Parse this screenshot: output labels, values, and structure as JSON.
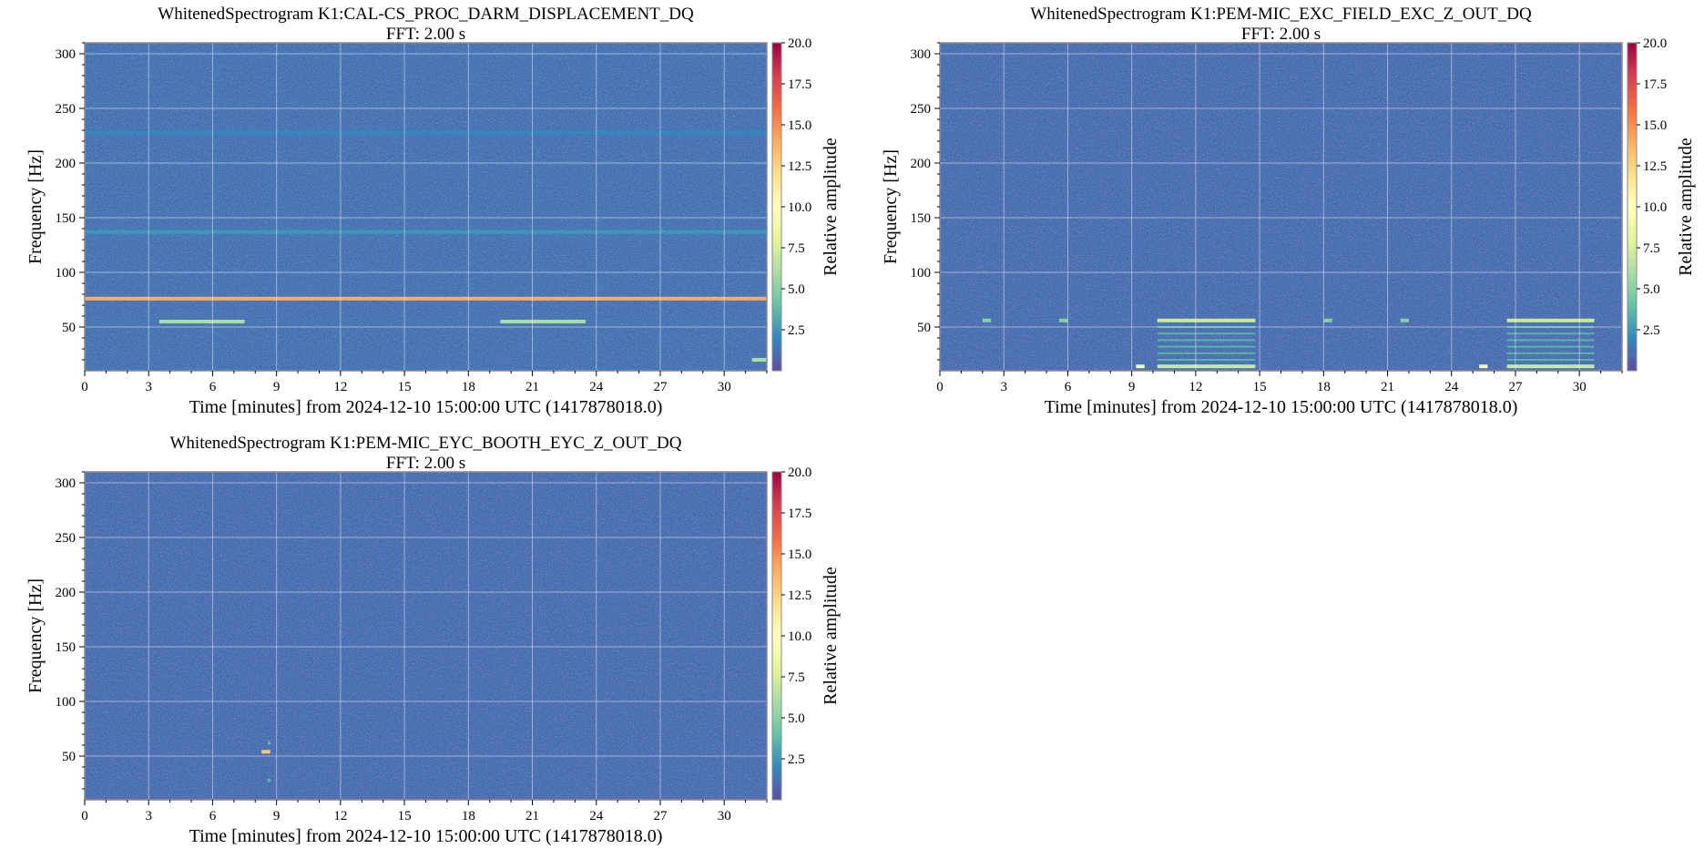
{
  "figure": {
    "time_axis_label": "Time [minutes] from 2024-12-10 15:00:00 UTC (1417878018.0)",
    "freq_axis_label": "Frequency [Hz]",
    "colorbar_label": "Relative amplitude"
  },
  "chart_data": [
    {
      "type": "heatmap",
      "title": "WhitenedSpectrogram K1:CAL-CS_PROC_DARM_DISPLACEMENT_DQ",
      "subtitle": "FFT: 2.00 s",
      "xlabel": "Time [minutes] from 2024-12-10 15:00:00 UTC (1417878018.0)",
      "ylabel": "Frequency [Hz]",
      "xlim": [
        0,
        32
      ],
      "ylim": [
        10,
        310
      ],
      "xticks": [
        0,
        3,
        6,
        9,
        12,
        15,
        18,
        21,
        24,
        27,
        30
      ],
      "yticks": [
        50,
        100,
        150,
        200,
        250,
        300
      ],
      "grid": true,
      "colorbar": {
        "label": "Relative amplitude",
        "range": [
          0,
          20
        ],
        "ticks": [
          "2.5",
          "5.0",
          "7.5",
          "10.0",
          "12.5",
          "15.0",
          "17.5",
          "20.0"
        ]
      },
      "background_level": 1.2,
      "features": [
        {
          "kind": "line",
          "t0": 0,
          "t1": 32,
          "f": 76,
          "level": 14
        },
        {
          "kind": "line",
          "t0": 3.5,
          "t1": 7.5,
          "f": 55,
          "level": 6
        },
        {
          "kind": "line",
          "t0": 19.5,
          "t1": 23.5,
          "f": 55,
          "level": 6
        },
        {
          "kind": "line",
          "t0": 0,
          "t1": 32,
          "f": 137,
          "level": 2.5
        },
        {
          "kind": "line",
          "t0": 0,
          "t1": 32,
          "f": 228,
          "level": 2
        },
        {
          "kind": "line",
          "t0": 31.3,
          "t1": 32,
          "f": 20,
          "level": 6
        }
      ]
    },
    {
      "type": "heatmap",
      "title": "WhitenedSpectrogram K1:PEM-MIC_EXC_FIELD_EXC_Z_OUT_DQ",
      "subtitle": "FFT: 2.00 s",
      "xlabel": "Time [minutes] from 2024-12-10 15:00:00 UTC (1417878018.0)",
      "ylabel": "Frequency [Hz]",
      "xlim": [
        0,
        32
      ],
      "ylim": [
        10,
        310
      ],
      "xticks": [
        0,
        3,
        6,
        9,
        12,
        15,
        18,
        21,
        24,
        27,
        30
      ],
      "yticks": [
        50,
        100,
        150,
        200,
        250,
        300
      ],
      "grid": true,
      "colorbar": {
        "label": "Relative amplitude",
        "range": [
          0,
          20
        ],
        "ticks": [
          "2.5",
          "5.0",
          "7.5",
          "10.0",
          "12.5",
          "15.0",
          "17.5",
          "20.0"
        ]
      },
      "background_level": 1,
      "features": [
        {
          "kind": "line",
          "t0": 10.2,
          "t1": 14.8,
          "f": 56,
          "level": 7
        },
        {
          "kind": "line",
          "t0": 10.2,
          "t1": 14.8,
          "f": 14,
          "level": 7
        },
        {
          "kind": "line",
          "t0": 26.6,
          "t1": 30.7,
          "f": 56,
          "level": 7
        },
        {
          "kind": "line",
          "t0": 26.6,
          "t1": 30.7,
          "f": 14,
          "level": 7
        },
        {
          "kind": "line",
          "t0": 2.0,
          "t1": 2.4,
          "f": 56,
          "level": 5
        },
        {
          "kind": "line",
          "t0": 5.6,
          "t1": 6.0,
          "f": 56,
          "level": 5
        },
        {
          "kind": "line",
          "t0": 9.2,
          "t1": 9.6,
          "f": 14,
          "level": 9
        },
        {
          "kind": "line",
          "t0": 18.0,
          "t1": 18.4,
          "f": 56,
          "level": 5
        },
        {
          "kind": "line",
          "t0": 21.6,
          "t1": 22.0,
          "f": 56,
          "level": 5
        },
        {
          "kind": "line",
          "t0": 25.3,
          "t1": 25.7,
          "f": 14,
          "level": 9
        },
        {
          "kind": "comb",
          "t0": 10.2,
          "t1": 14.8,
          "f0": 20,
          "f1": 52,
          "step": 6,
          "level": 3.5
        },
        {
          "kind": "comb",
          "t0": 26.6,
          "t1": 30.7,
          "f0": 20,
          "f1": 52,
          "step": 6,
          "level": 3.5
        }
      ]
    },
    {
      "type": "heatmap",
      "title": "WhitenedSpectrogram K1:PEM-MIC_EYC_BOOTH_EYC_Z_OUT_DQ",
      "subtitle": "FFT: 2.00 s",
      "xlabel": "Time [minutes] from 2024-12-10 15:00:00 UTC (1417878018.0)",
      "ylabel": "Frequency [Hz]",
      "xlim": [
        0,
        32
      ],
      "ylim": [
        10,
        310
      ],
      "xticks": [
        0,
        3,
        6,
        9,
        12,
        15,
        18,
        21,
        24,
        27,
        30
      ],
      "yticks": [
        50,
        100,
        150,
        200,
        250,
        300
      ],
      "grid": true,
      "colorbar": {
        "label": "Relative amplitude",
        "range": [
          0,
          20
        ],
        "ticks": [
          "2.5",
          "5.0",
          "7.5",
          "10.0",
          "12.5",
          "15.0",
          "17.5",
          "20.0"
        ]
      },
      "background_level": 1,
      "features": [
        {
          "kind": "line",
          "t0": 8.3,
          "t1": 8.7,
          "f": 54,
          "level": 13
        },
        {
          "kind": "line",
          "t0": 8.6,
          "t1": 8.7,
          "f": 62,
          "level": 4
        },
        {
          "kind": "line",
          "t0": 8.6,
          "t1": 8.7,
          "f": 28,
          "level": 4
        }
      ]
    }
  ]
}
